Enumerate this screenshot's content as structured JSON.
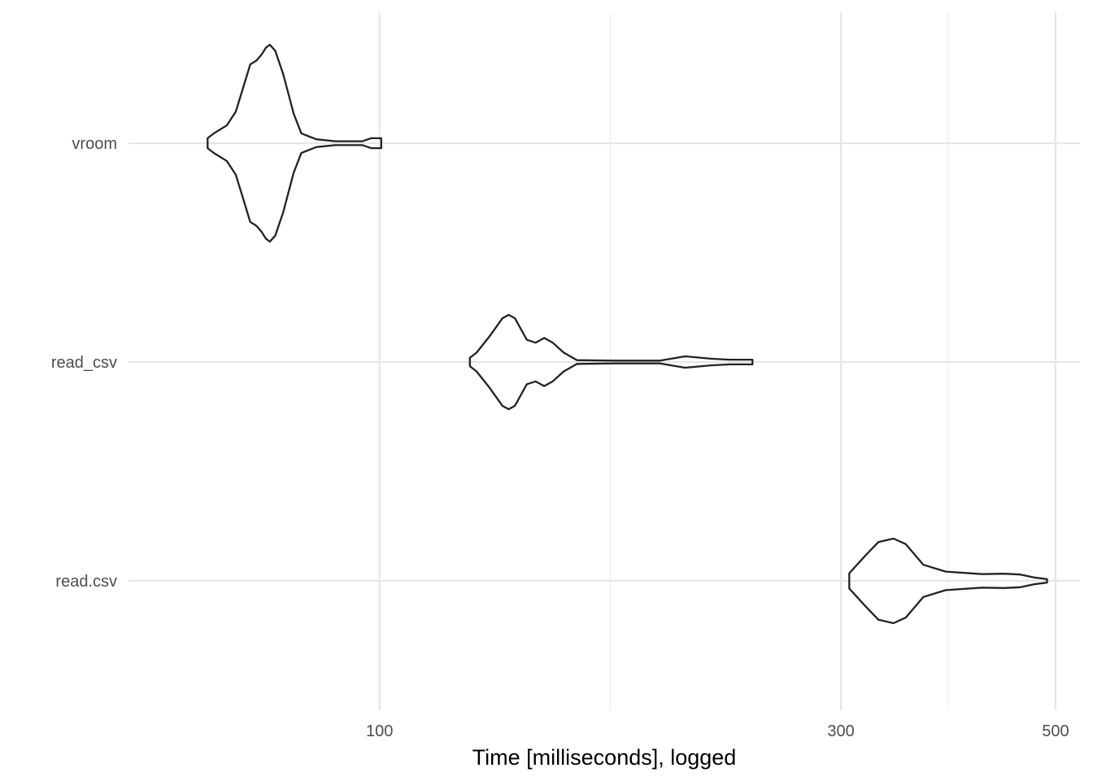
{
  "chart_data": {
    "type": "violin",
    "title": "",
    "xlabel": "Time [milliseconds], logged",
    "ylabel": "",
    "x_scale": "log10",
    "xlim": [
      55,
      530
    ],
    "x_ticks": [
      {
        "value": 100,
        "label": "100"
      },
      {
        "value": 300,
        "label": "300"
      },
      {
        "value": 500,
        "label": "500"
      }
    ],
    "x_minor_gridlines": [
      173.2,
      387.3
    ],
    "grid": true,
    "categories": [
      "vroom",
      "read_csv",
      "read.csv"
    ],
    "series": [
      {
        "category": "vroom",
        "min": 66.4,
        "max": 100.4,
        "profile": [
          [
            66.4,
            0.05
          ],
          [
            67.4,
            0.1
          ],
          [
            69.5,
            0.18
          ],
          [
            71.0,
            0.32
          ],
          [
            72.2,
            0.55
          ],
          [
            73.5,
            0.8
          ],
          [
            74.6,
            0.84
          ],
          [
            75.5,
            0.9
          ],
          [
            76.3,
            0.97
          ],
          [
            77.0,
            1.0
          ],
          [
            78.0,
            0.94
          ],
          [
            79.5,
            0.7
          ],
          [
            81.5,
            0.3
          ],
          [
            83.0,
            0.1
          ],
          [
            86.0,
            0.04
          ],
          [
            90.0,
            0.02
          ],
          [
            96.0,
            0.02
          ],
          [
            98.0,
            0.05
          ],
          [
            100.4,
            0.05
          ]
        ]
      },
      {
        "category": "read_csv",
        "min": 124.0,
        "max": 243.0,
        "profile": [
          [
            124.0,
            0.09
          ],
          [
            126.0,
            0.2
          ],
          [
            130.0,
            0.55
          ],
          [
            134.0,
            0.93
          ],
          [
            136.0,
            1.0
          ],
          [
            138.0,
            0.93
          ],
          [
            142.0,
            0.47
          ],
          [
            145.0,
            0.41
          ],
          [
            148.0,
            0.51
          ],
          [
            151.0,
            0.41
          ],
          [
            155.0,
            0.2
          ],
          [
            160.0,
            0.04
          ],
          [
            175.0,
            0.03
          ],
          [
            195.0,
            0.03
          ],
          [
            207.0,
            0.12
          ],
          [
            220.0,
            0.07
          ],
          [
            230.0,
            0.05
          ],
          [
            243.0,
            0.05
          ]
        ]
      },
      {
        "category": "read.csv",
        "min": 306.0,
        "max": 490.0,
        "profile": [
          [
            306.0,
            0.18
          ],
          [
            318.0,
            0.6
          ],
          [
            328.0,
            0.92
          ],
          [
            340.0,
            1.0
          ],
          [
            350.0,
            0.87
          ],
          [
            365.0,
            0.38
          ],
          [
            385.0,
            0.22
          ],
          [
            420.0,
            0.16
          ],
          [
            442.0,
            0.17
          ],
          [
            460.0,
            0.15
          ],
          [
            475.0,
            0.08
          ],
          [
            490.0,
            0.04
          ]
        ]
      }
    ]
  }
}
